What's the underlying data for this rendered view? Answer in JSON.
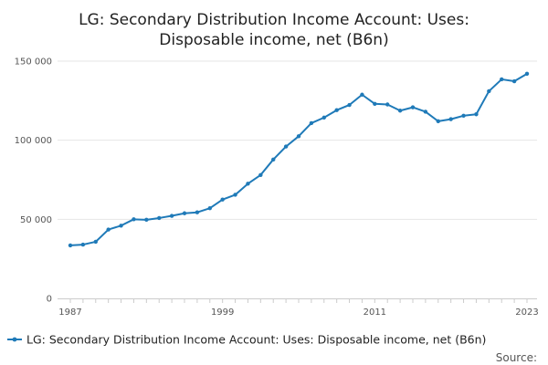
{
  "chart_data": {
    "type": "line",
    "title_lines": [
      "LG: Secondary Distribution Income Account: Uses:",
      "Disposable income, net (B6n)"
    ],
    "x": [
      1987,
      1988,
      1989,
      1990,
      1991,
      1992,
      1993,
      1994,
      1995,
      1996,
      1997,
      1998,
      1999,
      2000,
      2001,
      2002,
      2003,
      2004,
      2005,
      2006,
      2007,
      2008,
      2009,
      2010,
      2011,
      2012,
      2013,
      2014,
      2015,
      2016,
      2017,
      2018,
      2019,
      2020,
      2021,
      2022,
      2023
    ],
    "series": [
      {
        "name": "LG: Secondary Distribution Income Account: Uses: Disposable income, net (B6n)",
        "color": "#1f7ab8",
        "values": [
          33500,
          34000,
          35800,
          43500,
          46000,
          50000,
          49700,
          50800,
          52200,
          53800,
          54400,
          57000,
          62500,
          65500,
          72500,
          78000,
          87800,
          96000,
          102500,
          110800,
          114300,
          119000,
          122300,
          128800,
          123000,
          122600,
          118700,
          120800,
          118000,
          112000,
          113300,
          115500,
          116400,
          131000,
          138500,
          137300,
          142000
        ]
      }
    ],
    "xticks": [
      1987,
      1999,
      2011,
      2023
    ],
    "yticks": [
      0,
      50000,
      100000,
      150000
    ],
    "ytick_labels": [
      "0",
      "50 000",
      "100 000",
      "150 000"
    ],
    "xlim": [
      1987,
      2023
    ],
    "ylim": [
      0,
      150000
    ],
    "grid": "horizontal",
    "legend_position": "bottom",
    "source_label": "Source:"
  }
}
